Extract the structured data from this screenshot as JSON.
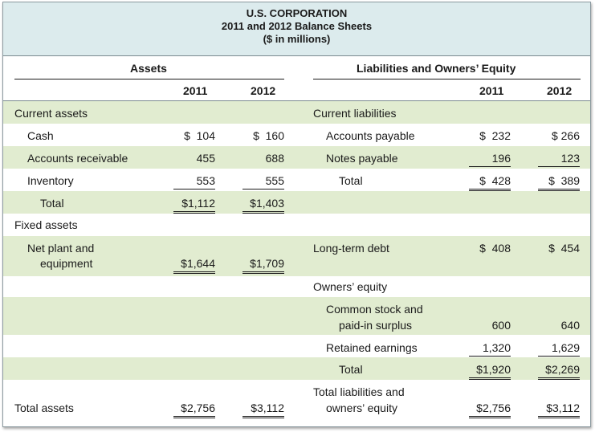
{
  "header": {
    "company": "U.S. CORPORATION",
    "subtitle": "2011 and 2012 Balance Sheets",
    "units": "($ in millions)"
  },
  "assets": {
    "heading": "Assets",
    "year1": "2011",
    "year2": "2012",
    "current_assets_label": "Current assets",
    "cash": {
      "label": "Cash",
      "y1": "$  104",
      "y2": "$  160"
    },
    "receivable": {
      "label": "Accounts receivable",
      "y1": "455",
      "y2": "688"
    },
    "inventory": {
      "label": "Inventory",
      "y1": "553",
      "y2": "555"
    },
    "current_total": {
      "label": "Total",
      "y1": "$1,112",
      "y2": "$1,403"
    },
    "fixed_assets_label": "Fixed assets",
    "plant": {
      "label1": "Net plant and",
      "label2": "equipment",
      "y1": "$1,644",
      "y2": "$1,709"
    },
    "total_assets": {
      "label": "Total assets",
      "y1": "$2,756",
      "y2": "$3,112"
    }
  },
  "liabilities": {
    "heading": "Liabilities and Owners’ Equity",
    "year1": "2011",
    "year2": "2012",
    "current_liabilities_label": "Current liabilities",
    "payable": {
      "label": "Accounts payable",
      "y1": "$  232",
      "y2": "$ 266"
    },
    "notes": {
      "label": "Notes payable",
      "y1": "196",
      "y2": "123"
    },
    "current_total": {
      "label": "Total",
      "y1": "$  428",
      "y2": "$  389"
    },
    "long_term_debt": {
      "label": "Long-term debt",
      "y1": "$  408",
      "y2": "$  454"
    },
    "owners_equity_label": "Owners’ equity",
    "common_stock": {
      "label1": "Common stock and",
      "label2": "paid-in surplus",
      "y1": "600",
      "y2": "640"
    },
    "retained": {
      "label": "Retained earnings",
      "y1": "1,320",
      "y2": "1,629"
    },
    "equity_total": {
      "label": "Total",
      "y1": "$1,920",
      "y2": "$2,269"
    },
    "total_le": {
      "label1": "Total liabilities and",
      "label2": "owners’ equity",
      "y1": "$2,756",
      "y2": "$3,112"
    }
  }
}
